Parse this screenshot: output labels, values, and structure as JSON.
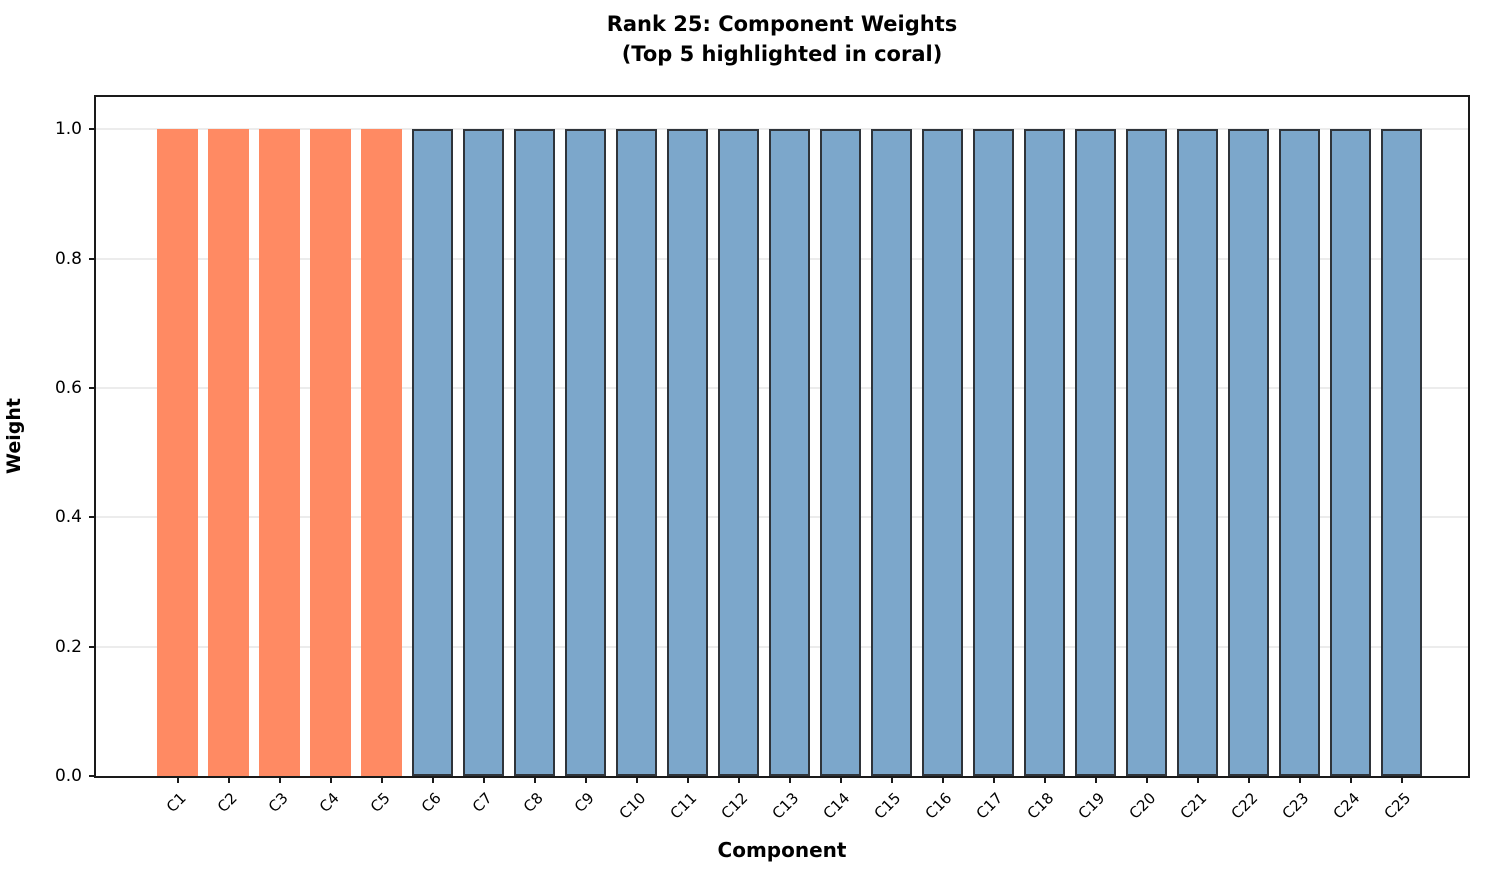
{
  "title": {
    "line1": "Rank 25: Component Weights",
    "line2": "(Top 5 highlighted in coral)"
  },
  "axes": {
    "xlabel": "Component",
    "ylabel": "Weight"
  },
  "chart_data": {
    "type": "bar",
    "title": "Rank 25: Component Weights (Top 5 highlighted in coral)",
    "xlabel": "Component",
    "ylabel": "Weight",
    "categories": [
      "C1",
      "C2",
      "C3",
      "C4",
      "C5",
      "C6",
      "C7",
      "C8",
      "C9",
      "C10",
      "C11",
      "C12",
      "C13",
      "C14",
      "C15",
      "C16",
      "C17",
      "C18",
      "C19",
      "C20",
      "C21",
      "C22",
      "C23",
      "C24",
      "C25"
    ],
    "values": [
      1.0,
      1.0,
      1.0,
      1.0,
      1.0,
      1.0,
      1.0,
      1.0,
      1.0,
      1.0,
      1.0,
      1.0,
      1.0,
      1.0,
      1.0,
      1.0,
      1.0,
      1.0,
      1.0,
      1.0,
      1.0,
      1.0,
      1.0,
      1.0,
      1.0
    ],
    "highlight_count": 5,
    "ylim": [
      0,
      1.05
    ],
    "yticks": [
      0.0,
      0.2,
      0.4,
      0.6,
      0.8,
      1.0
    ],
    "ytick_labels": [
      "0.0",
      "0.2",
      "0.4",
      "0.6",
      "0.8",
      "1.0"
    ],
    "grid": "horizontal",
    "legend": "none",
    "colors": {
      "highlight": "#ff8a63",
      "default": "#7ca7cb",
      "edge": "#2f343a",
      "grid": "#ececec",
      "spine": "#1a1a1a"
    }
  }
}
